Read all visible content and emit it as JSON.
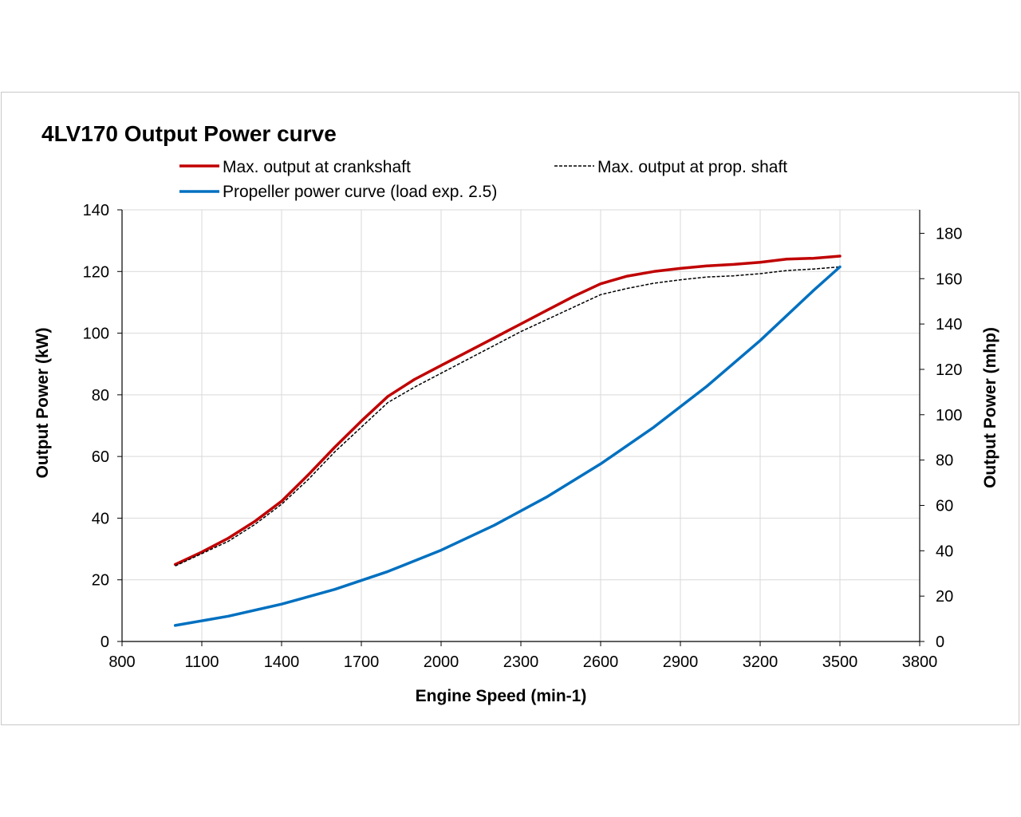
{
  "chart_data": {
    "type": "line",
    "title": "4LV170 Output Power curve",
    "xlabel": "Engine Speed (min-1)",
    "ylabel": "Output Power (kW)",
    "y2label": "Output Power (mhp)",
    "xlim": [
      800,
      3800
    ],
    "ylim": [
      0,
      140
    ],
    "y2lim": [
      0,
      190.35
    ],
    "xticks": [
      800,
      1100,
      1400,
      1700,
      2000,
      2300,
      2600,
      2900,
      3200,
      3500,
      3800
    ],
    "yticks": [
      0,
      20,
      40,
      60,
      80,
      100,
      120,
      140
    ],
    "y2ticks": [
      0,
      20,
      40,
      60,
      80,
      100,
      120,
      140,
      160,
      180
    ],
    "grid": true,
    "legend_position": "top",
    "series": [
      {
        "name": "Max. output at crankshaft",
        "color": "#c00000",
        "style": "solid",
        "x": [
          1000,
          1100,
          1200,
          1300,
          1400,
          1500,
          1600,
          1700,
          1800,
          1900,
          2000,
          2100,
          2200,
          2300,
          2400,
          2500,
          2600,
          2700,
          2800,
          2900,
          3000,
          3100,
          3200,
          3300,
          3400,
          3500
        ],
        "y": [
          25,
          29,
          33.5,
          39,
          45.5,
          54,
          63,
          71.5,
          79.5,
          85,
          89.5,
          94,
          98.5,
          103,
          107.5,
          112,
          116,
          118.5,
          120,
          121,
          121.8,
          122.3,
          123,
          124,
          124.3,
          125
        ]
      },
      {
        "name": "Max. output at prop. shaft",
        "color": "#000000",
        "style": "dashed",
        "x": [
          1000,
          1100,
          1200,
          1300,
          1400,
          1500,
          1600,
          1700,
          1800,
          1900,
          2000,
          2100,
          2200,
          2300,
          2400,
          2500,
          2600,
          2700,
          2800,
          2900,
          3000,
          3100,
          3200,
          3300,
          3400,
          3500
        ],
        "y": [
          24.5,
          28.5,
          32.5,
          38,
          44.5,
          52.5,
          61.5,
          69.5,
          77.5,
          82.5,
          87,
          91.5,
          96,
          100.5,
          104.5,
          108.5,
          112.5,
          114.5,
          116.2,
          117.3,
          118.2,
          118.6,
          119.3,
          120.3,
          120.8,
          121.5
        ]
      },
      {
        "name": "Propeller power curve (load exp. 2.5)",
        "color": "#0070c0",
        "style": "solid",
        "x": [
          1000,
          1200,
          1400,
          1600,
          1800,
          2000,
          2200,
          2400,
          2600,
          2800,
          3000,
          3200,
          3400,
          3500
        ],
        "y": [
          5.2,
          8.2,
          12.1,
          16.9,
          22.7,
          29.6,
          37.7,
          47,
          57.6,
          69.5,
          82.8,
          97.6,
          113.8,
          121.5
        ]
      }
    ]
  }
}
